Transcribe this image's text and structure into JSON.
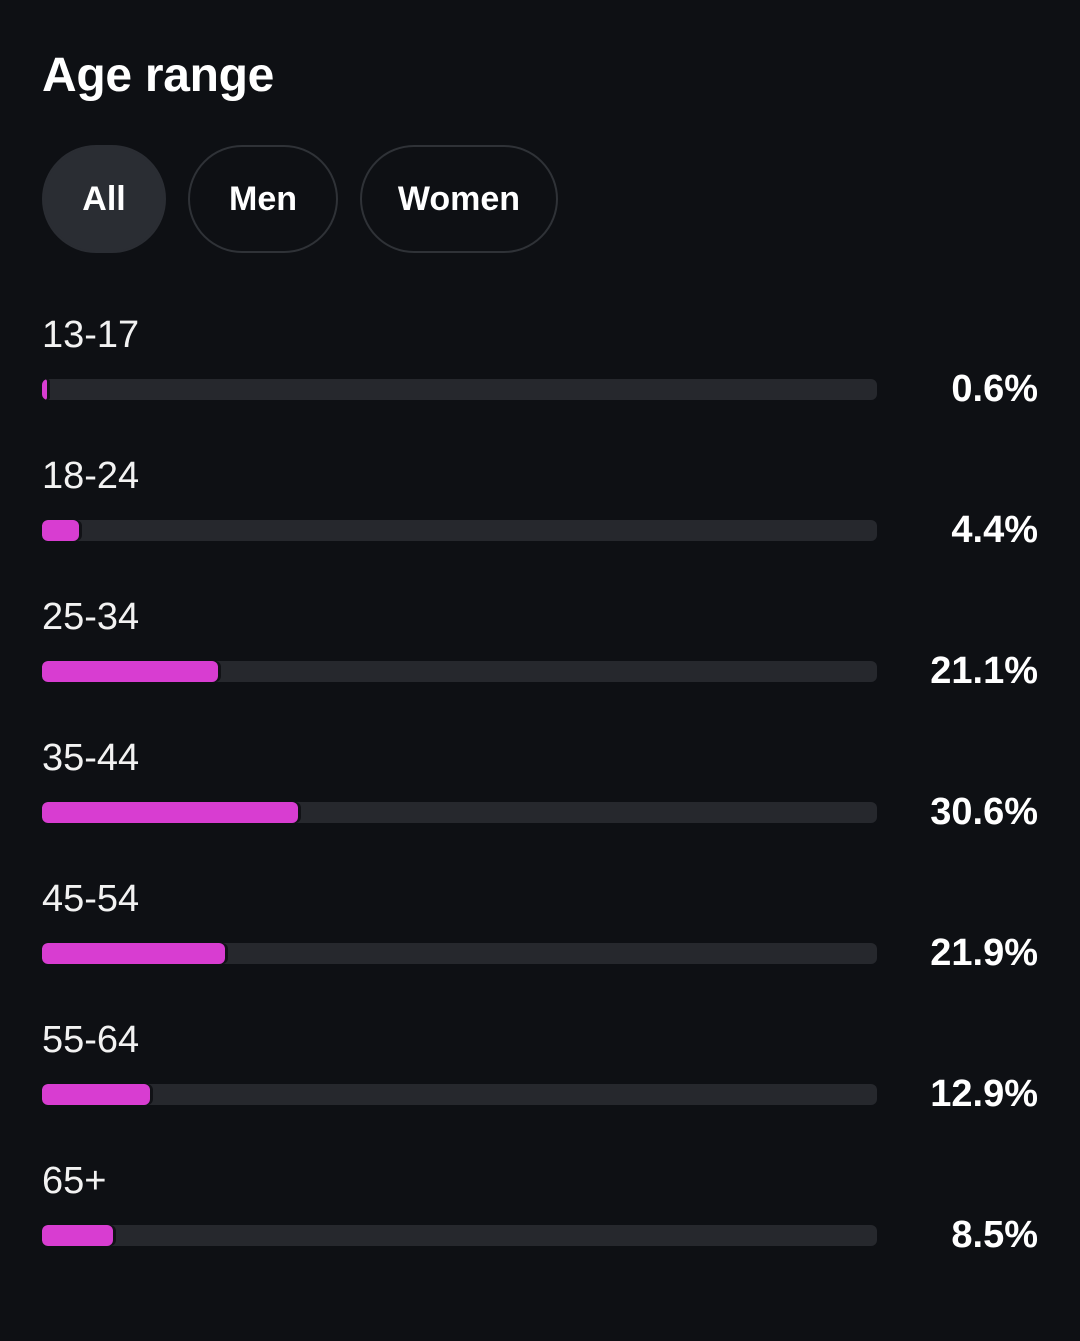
{
  "header": {
    "title": "Age range"
  },
  "filters": {
    "items": [
      {
        "label": "All",
        "selected": true
      },
      {
        "label": "Men",
        "selected": false
      },
      {
        "label": "Women",
        "selected": false
      }
    ]
  },
  "colors": {
    "background": "#0e1014",
    "bar_fill": "#d83dd1",
    "bar_track": "#26282d",
    "chip_active": "#2a2d33"
  },
  "chart_data": {
    "type": "bar",
    "orientation": "horizontal",
    "categories": [
      "13-17",
      "18-24",
      "25-34",
      "35-44",
      "45-54",
      "55-64",
      "65+"
    ],
    "values": [
      0.6,
      4.4,
      21.1,
      30.6,
      21.9,
      12.9,
      8.5
    ],
    "value_labels": [
      "0.6%",
      "4.4%",
      "21.1%",
      "30.6%",
      "21.9%",
      "12.9%",
      "8.5%"
    ],
    "xlim": [
      0,
      100
    ]
  }
}
